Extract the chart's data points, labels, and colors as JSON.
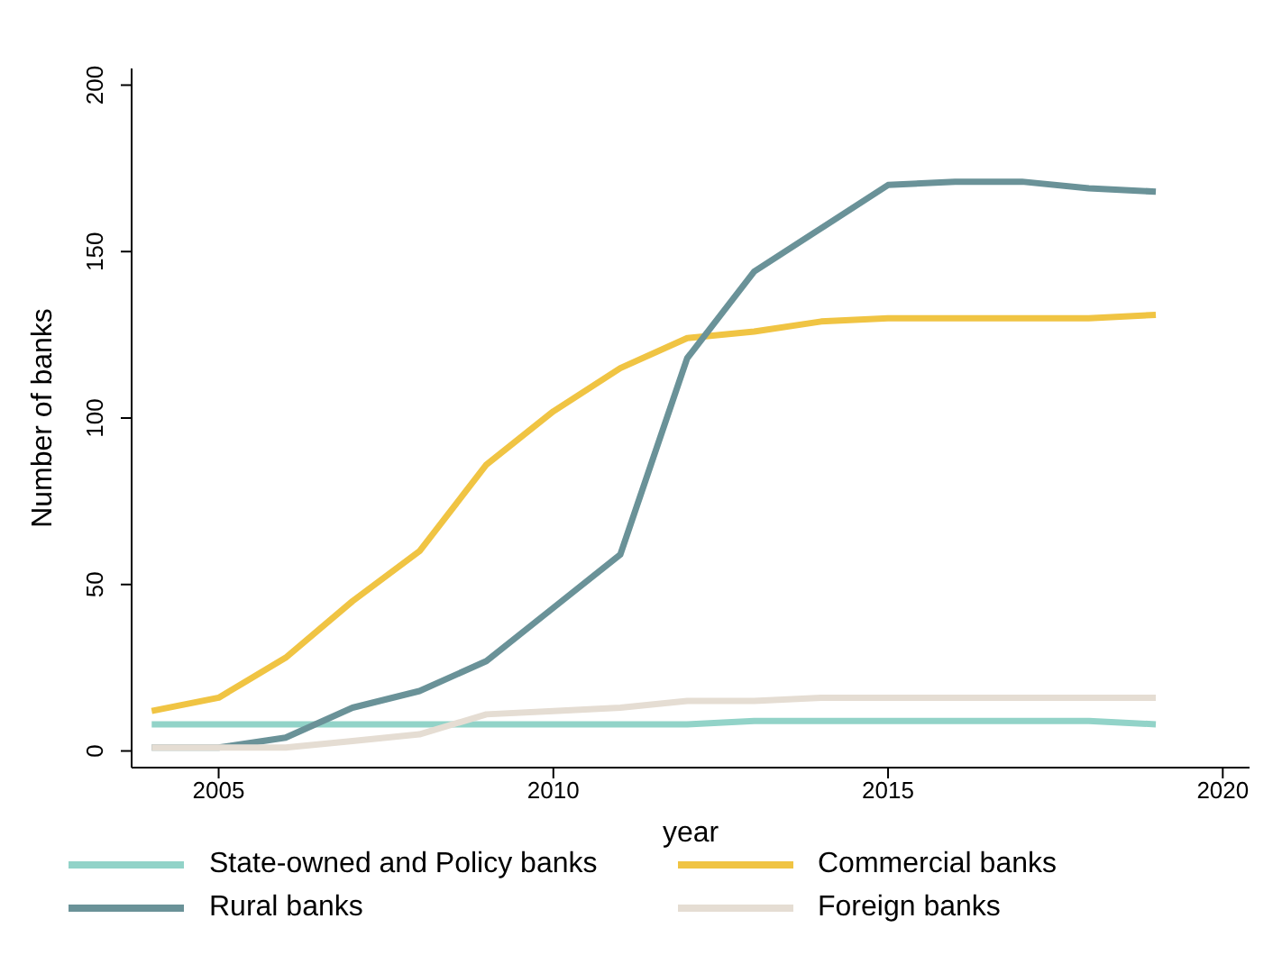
{
  "chart_data": {
    "type": "line",
    "xlabel": "year",
    "ylabel": "Number of banks",
    "x": [
      2004,
      2005,
      2006,
      2007,
      2008,
      2009,
      2010,
      2011,
      2012,
      2013,
      2014,
      2015,
      2016,
      2017,
      2018,
      2019
    ],
    "series": [
      {
        "name": "State-owned and Policy banks",
        "color": "#92d3c8",
        "values": [
          8,
          8,
          8,
          8,
          8,
          8,
          8,
          8,
          8,
          9,
          9,
          9,
          9,
          9,
          9,
          8
        ]
      },
      {
        "name": "Commercial banks",
        "color": "#f0c443",
        "values": [
          12,
          16,
          28,
          45,
          60,
          86,
          102,
          115,
          124,
          126,
          129,
          130,
          130,
          130,
          130,
          131
        ]
      },
      {
        "name": "Rural banks",
        "color": "#6a9298",
        "values": [
          1,
          1,
          4,
          13,
          18,
          27,
          43,
          59,
          118,
          144,
          157,
          170,
          171,
          171,
          169,
          168
        ]
      },
      {
        "name": "Foreign banks",
        "color": "#e5ddd3",
        "values": [
          1,
          1,
          1,
          3,
          5,
          11,
          12,
          13,
          15,
          15,
          16,
          16,
          16,
          16,
          16,
          16
        ]
      }
    ],
    "xlim": [
      2003.7,
      2020.4
    ],
    "xticks": [
      2005,
      2010,
      2015,
      2020
    ],
    "ylim": [
      -5,
      205
    ],
    "yticks": [
      0,
      50,
      100,
      150,
      200
    ],
    "legend": "bottom",
    "marker": "none",
    "line_style": "solid"
  }
}
